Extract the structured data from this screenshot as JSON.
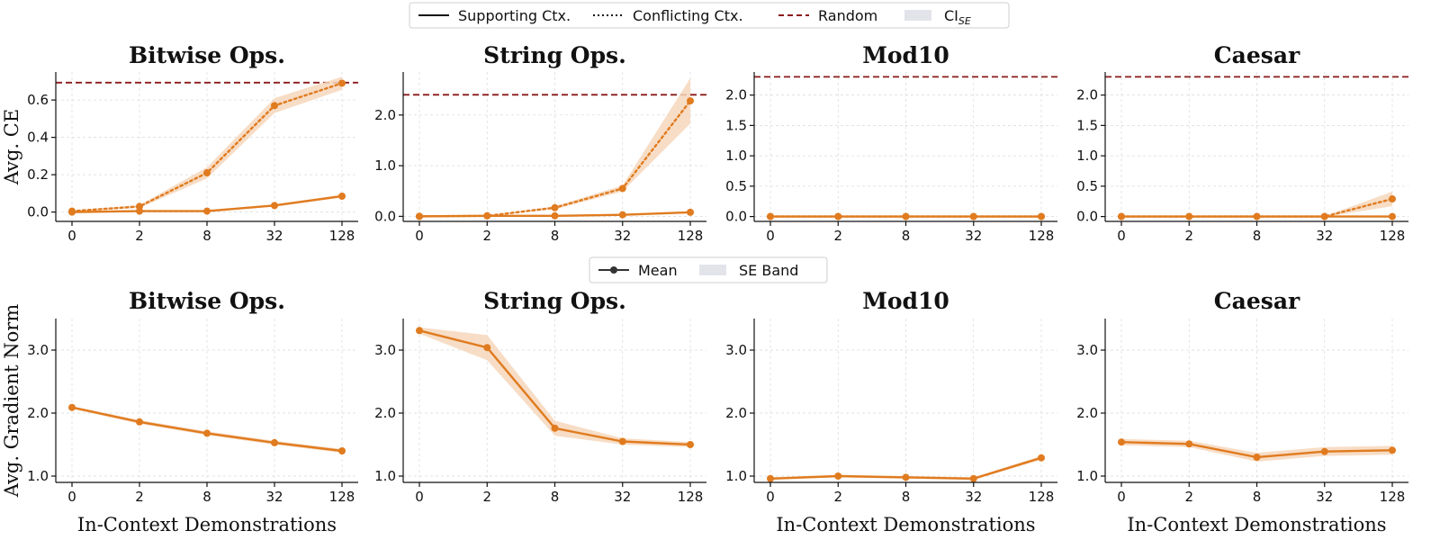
{
  "top_legend": {
    "items": [
      {
        "label": "Supporting Ctx.",
        "style": "solid"
      },
      {
        "label": "Conflicting Ctx.",
        "style": "dotted"
      },
      {
        "label": "Random",
        "style": "dashed-random"
      },
      {
        "label": "CI",
        "sub": "SE",
        "style": "band"
      }
    ]
  },
  "bottom_legend": {
    "items": [
      {
        "label": "Mean",
        "style": "marker-line"
      },
      {
        "label": "SE Band",
        "style": "band"
      }
    ]
  },
  "colors": {
    "series": "#e07b1f",
    "band": "#f6d7bc",
    "random": "#8b1a1a",
    "legend_band": "#e3e4ea"
  },
  "chart_data": [
    {
      "type": "line",
      "title": "Bitwise Ops.",
      "ylabel": "Avg. CE",
      "xlabel": "",
      "categories": [
        "0",
        "2",
        "8",
        "32",
        "128"
      ],
      "ylim": [
        -0.05,
        0.75
      ],
      "yticks": [
        0.0,
        0.2,
        0.4,
        0.6
      ],
      "ytick_labels": [
        "0.0",
        "0.2",
        "0.4",
        "0.6"
      ],
      "random_baseline": 0.693,
      "series": [
        {
          "name": "Supporting Ctx.",
          "style": "solid",
          "values": [
            0.0,
            0.005,
            0.005,
            0.035,
            0.085
          ],
          "band": [
            0.003,
            0.003,
            0.004,
            0.006,
            0.008
          ]
        },
        {
          "name": "Conflicting Ctx.",
          "style": "dotted",
          "values": [
            0.005,
            0.03,
            0.21,
            0.57,
            0.69
          ],
          "band": [
            0.004,
            0.008,
            0.03,
            0.04,
            0.035
          ]
        }
      ]
    },
    {
      "type": "line",
      "title": "String Ops.",
      "ylabel": "",
      "xlabel": "",
      "categories": [
        "0",
        "2",
        "8",
        "32",
        "128"
      ],
      "ylim": [
        -0.1,
        2.85
      ],
      "yticks": [
        0.0,
        1.0,
        2.0
      ],
      "ytick_labels": [
        "0.0",
        "1.0",
        "2.0"
      ],
      "random_baseline": 2.4,
      "series": [
        {
          "name": "Supporting Ctx.",
          "style": "solid",
          "values": [
            0.0,
            0.01,
            0.01,
            0.03,
            0.08
          ],
          "band": [
            0.005,
            0.005,
            0.008,
            0.012,
            0.02
          ]
        },
        {
          "name": "Conflicting Ctx.",
          "style": "dotted",
          "values": [
            0.0,
            0.01,
            0.17,
            0.55,
            2.28
          ],
          "band": [
            0.005,
            0.008,
            0.03,
            0.06,
            0.45
          ]
        }
      ]
    },
    {
      "type": "line",
      "title": "Mod10",
      "ylabel": "",
      "xlabel": "",
      "categories": [
        "0",
        "2",
        "8",
        "32",
        "128"
      ],
      "ylim": [
        -0.08,
        2.38
      ],
      "yticks": [
        0.0,
        0.5,
        1.0,
        1.5,
        2.0
      ],
      "ytick_labels": [
        "0.0",
        "0.5",
        "1.0",
        "1.5",
        "2.0"
      ],
      "random_baseline": 2.3,
      "series": [
        {
          "name": "Supporting Ctx.",
          "style": "solid",
          "values": [
            0.0,
            0.0,
            0.0,
            0.0,
            0.0
          ],
          "band": [
            0.004,
            0.004,
            0.004,
            0.004,
            0.004
          ]
        },
        {
          "name": "Conflicting Ctx.",
          "style": "dotted",
          "values": [
            0.0,
            0.0,
            0.0,
            0.0,
            0.0
          ],
          "band": [
            0.004,
            0.004,
            0.004,
            0.004,
            0.004
          ]
        }
      ]
    },
    {
      "type": "line",
      "title": "Caesar",
      "ylabel": "",
      "xlabel": "",
      "categories": [
        "0",
        "2",
        "8",
        "32",
        "128"
      ],
      "ylim": [
        -0.08,
        2.38
      ],
      "yticks": [
        0.0,
        0.5,
        1.0,
        1.5,
        2.0
      ],
      "ytick_labels": [
        "0.0",
        "0.5",
        "1.0",
        "1.5",
        "2.0"
      ],
      "random_baseline": 2.3,
      "series": [
        {
          "name": "Supporting Ctx.",
          "style": "solid",
          "values": [
            0.0,
            0.0,
            0.0,
            0.0,
            0.0
          ],
          "band": [
            0.004,
            0.004,
            0.004,
            0.004,
            0.004
          ]
        },
        {
          "name": "Conflicting Ctx.",
          "style": "dotted",
          "values": [
            0.0,
            0.0,
            0.0,
            0.0,
            0.29
          ],
          "band": [
            0.004,
            0.004,
            0.004,
            0.006,
            0.12
          ]
        }
      ]
    },
    {
      "type": "line",
      "title": "Bitwise Ops.",
      "ylabel": "Avg. Gradient Norm",
      "xlabel": "In-Context Demonstrations",
      "categories": [
        "0",
        "2",
        "8",
        "32",
        "128"
      ],
      "ylim": [
        0.9,
        3.5
      ],
      "yticks": [
        1.0,
        2.0,
        3.0
      ],
      "ytick_labels": [
        "1.0",
        "2.0",
        "3.0"
      ],
      "series": [
        {
          "name": "Mean",
          "style": "solid",
          "values": [
            2.09,
            1.86,
            1.68,
            1.53,
            1.4
          ],
          "band": [
            0.02,
            0.03,
            0.03,
            0.03,
            0.03
          ]
        }
      ]
    },
    {
      "type": "line",
      "title": "String Ops.",
      "ylabel": "",
      "xlabel": "",
      "categories": [
        "0",
        "2",
        "8",
        "32",
        "128"
      ],
      "ylim": [
        0.9,
        3.5
      ],
      "yticks": [
        1.0,
        2.0,
        3.0
      ],
      "ytick_labels": [
        "1.0",
        "2.0",
        "3.0"
      ],
      "series": [
        {
          "name": "Mean",
          "style": "solid",
          "values": [
            3.31,
            3.04,
            1.76,
            1.55,
            1.5
          ],
          "band": [
            0.05,
            0.2,
            0.12,
            0.05,
            0.04
          ]
        }
      ]
    },
    {
      "type": "line",
      "title": "Mod10",
      "ylabel": "",
      "xlabel": "In-Context Demonstrations",
      "categories": [
        "0",
        "2",
        "8",
        "32",
        "128"
      ],
      "ylim": [
        0.9,
        3.5
      ],
      "yticks": [
        1.0,
        2.0,
        3.0
      ],
      "ytick_labels": [
        "1.0",
        "2.0",
        "3.0"
      ],
      "series": [
        {
          "name": "Mean",
          "style": "solid",
          "values": [
            0.96,
            1.0,
            0.98,
            0.96,
            1.29
          ],
          "band": [
            0.02,
            0.02,
            0.02,
            0.02,
            0.03
          ]
        }
      ]
    },
    {
      "type": "line",
      "title": "Caesar",
      "ylabel": "",
      "xlabel": "In-Context Demonstrations",
      "categories": [
        "0",
        "2",
        "8",
        "32",
        "128"
      ],
      "ylim": [
        0.9,
        3.5
      ],
      "yticks": [
        1.0,
        2.0,
        3.0
      ],
      "ytick_labels": [
        "1.0",
        "2.0",
        "3.0"
      ],
      "series": [
        {
          "name": "Mean",
          "style": "solid",
          "values": [
            1.54,
            1.51,
            1.3,
            1.39,
            1.41
          ],
          "band": [
            0.05,
            0.05,
            0.07,
            0.07,
            0.07
          ]
        }
      ]
    }
  ]
}
